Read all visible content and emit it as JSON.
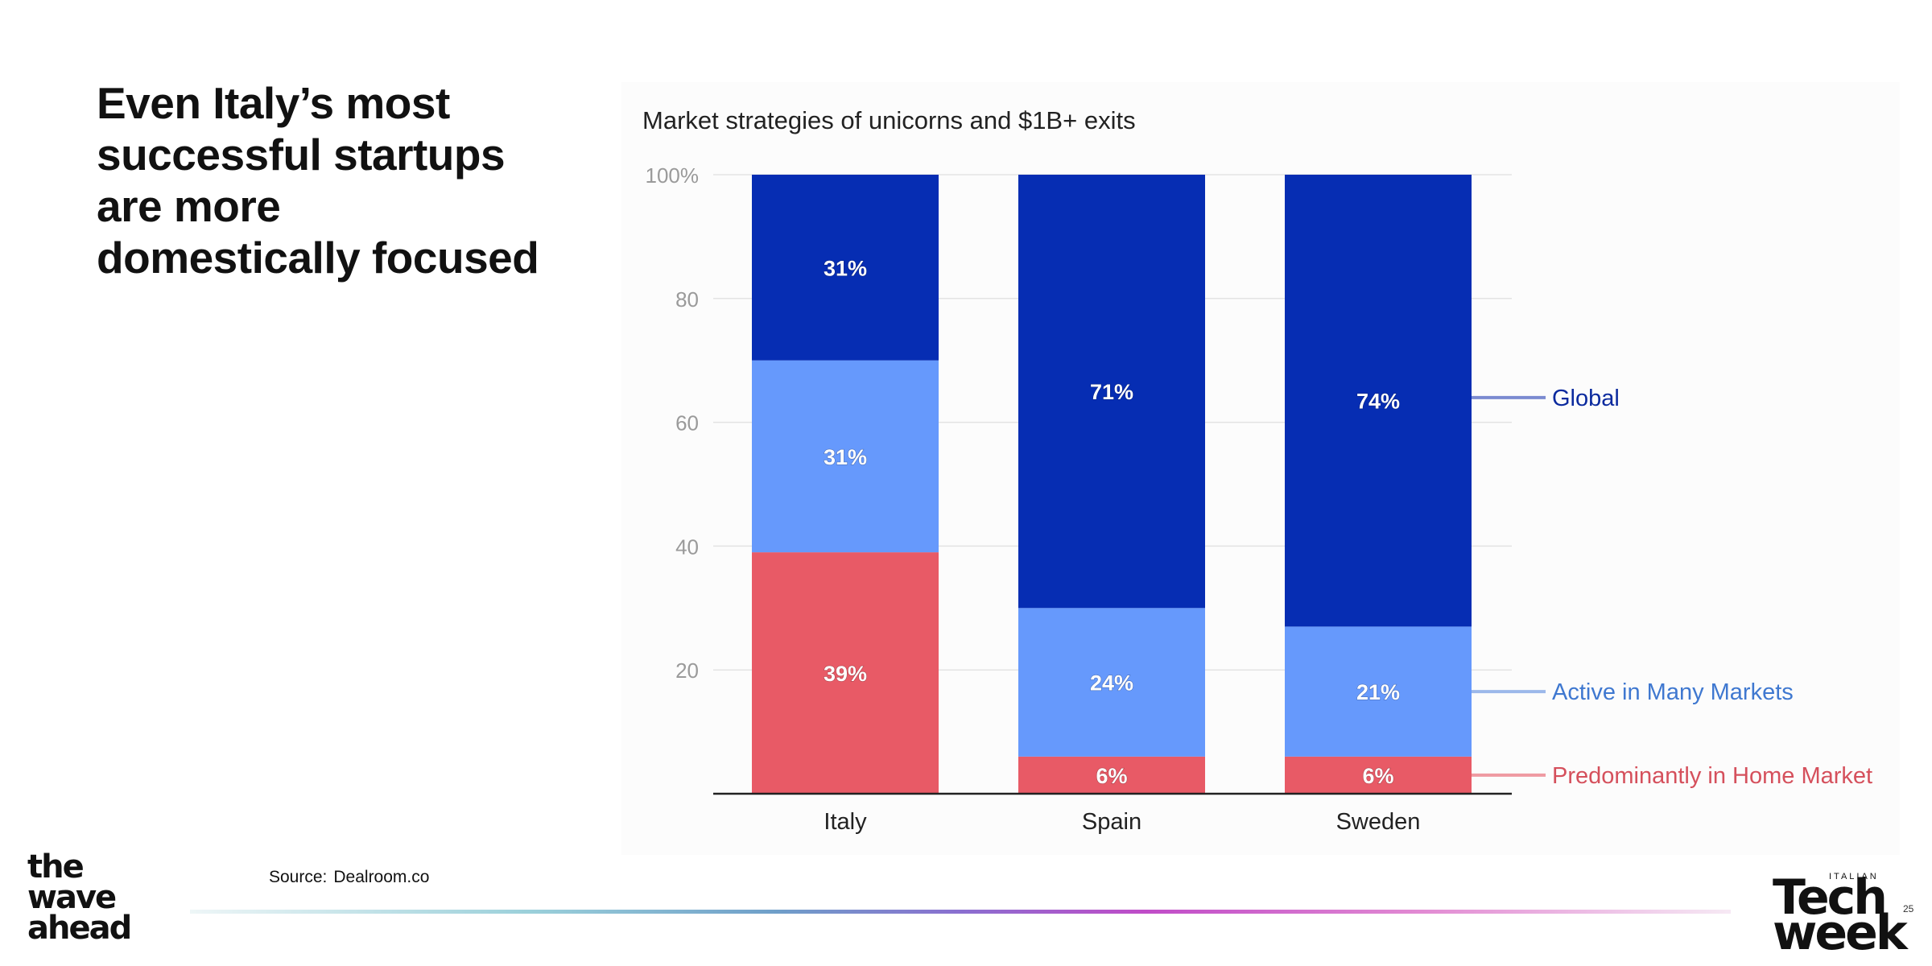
{
  "slide": {
    "title": "Even Italy’s most successful startups are more domestically focused",
    "source_label": "Source:",
    "source_value": "Dealroom.co",
    "page_number": "25"
  },
  "logos": {
    "left_lines": [
      "the",
      "wave",
      "ahead"
    ],
    "right_small": "ITALIAN",
    "right_line1": "Tech",
    "right_line2": "week"
  },
  "colors": {
    "global": "#062db3",
    "active": "#6699fc",
    "home": "#e85a66",
    "grid": "#e3e3e3",
    "axis": "#222222",
    "tick": "#9a9a9a",
    "legend_global": "#0b2a9e",
    "legend_active": "#3f78d0",
    "legend_home": "#d5505c",
    "leader_global": "#7b8bd1",
    "leader_active": "#9cb8ea",
    "leader_home": "#ef9aa2"
  },
  "chart_data": {
    "type": "bar",
    "stacked": true,
    "title": "Market strategies of unicorns and $1B+ exits",
    "categories": [
      "Italy",
      "Spain",
      "Sweden"
    ],
    "series": [
      {
        "name": "Predominantly in Home Market",
        "values": [
          39,
          6,
          6
        ],
        "labels": [
          "39%",
          "6%",
          "6%"
        ],
        "color_key": "home"
      },
      {
        "name": "Active in Many Markets",
        "values": [
          31,
          24,
          21
        ],
        "labels": [
          "31%",
          "24%",
          "21%"
        ],
        "color_key": "active"
      },
      {
        "name": "Global",
        "values": [
          31,
          71,
          74
        ],
        "labels": [
          "31%",
          "71%",
          "74%"
        ],
        "color_key": "global"
      }
    ],
    "ylim": [
      0,
      100
    ],
    "yticks": [
      20,
      40,
      60,
      80,
      100
    ],
    "ytick_labels": [
      "20",
      "40",
      "60",
      "80",
      "100%"
    ],
    "grid": true,
    "legend": "right, inline labels aligned to last bar"
  }
}
